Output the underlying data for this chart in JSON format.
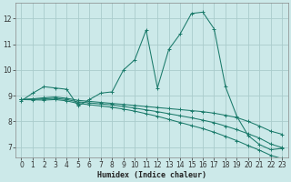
{
  "xlabel": "Humidex (Indice chaleur)",
  "ylabel": "",
  "xlim": [
    -0.5,
    23.5
  ],
  "ylim": [
    6.6,
    12.6
  ],
  "xticks": [
    0,
    1,
    2,
    3,
    4,
    5,
    6,
    7,
    8,
    9,
    10,
    11,
    12,
    13,
    14,
    15,
    16,
    17,
    18,
    19,
    20,
    21,
    22,
    23
  ],
  "yticks": [
    7,
    8,
    9,
    10,
    11,
    12
  ],
  "background_color": "#cce9e9",
  "grid_color": "#aacccc",
  "line_color": "#1a7a6a",
  "series": [
    {
      "x": [
        0,
        1,
        2,
        3,
        4,
        5,
        6,
        7,
        8,
        9,
        10,
        11,
        12,
        13,
        14,
        15,
        16,
        17,
        18,
        19,
        20,
        21,
        22,
        23
      ],
      "y": [
        8.8,
        9.1,
        9.35,
        9.3,
        9.25,
        8.6,
        8.85,
        9.1,
        9.15,
        10.0,
        10.4,
        11.55,
        9.3,
        10.8,
        11.4,
        12.2,
        12.25,
        11.6,
        9.35,
        8.2,
        7.45,
        7.1,
        6.9,
        6.95
      ]
    },
    {
      "x": [
        0,
        1,
        2,
        3,
        4,
        5,
        6,
        7,
        8,
        9,
        10,
        11,
        12,
        13,
        14,
        15,
        16,
        17,
        18,
        19,
        20,
        21,
        22,
        23
      ],
      "y": [
        8.85,
        8.88,
        8.92,
        8.95,
        8.9,
        8.82,
        8.78,
        8.74,
        8.7,
        8.66,
        8.62,
        8.58,
        8.54,
        8.5,
        8.46,
        8.42,
        8.38,
        8.32,
        8.24,
        8.15,
        8.0,
        7.82,
        7.62,
        7.5
      ]
    },
    {
      "x": [
        0,
        1,
        2,
        3,
        4,
        5,
        6,
        7,
        8,
        9,
        10,
        11,
        12,
        13,
        14,
        15,
        16,
        17,
        18,
        19,
        20,
        21,
        22,
        23
      ],
      "y": [
        8.85,
        8.86,
        8.88,
        8.9,
        8.85,
        8.76,
        8.72,
        8.68,
        8.64,
        8.58,
        8.52,
        8.45,
        8.38,
        8.3,
        8.22,
        8.14,
        8.05,
        7.95,
        7.82,
        7.68,
        7.52,
        7.35,
        7.12,
        6.98
      ]
    },
    {
      "x": [
        0,
        1,
        2,
        3,
        4,
        5,
        6,
        7,
        8,
        9,
        10,
        11,
        12,
        13,
        14,
        15,
        16,
        17,
        18,
        19,
        20,
        21,
        22,
        23
      ],
      "y": [
        8.85,
        8.84,
        8.83,
        8.85,
        8.8,
        8.7,
        8.65,
        8.6,
        8.55,
        8.48,
        8.4,
        8.3,
        8.2,
        8.08,
        7.96,
        7.84,
        7.72,
        7.58,
        7.42,
        7.25,
        7.06,
        6.88,
        6.68,
        6.55
      ]
    }
  ]
}
